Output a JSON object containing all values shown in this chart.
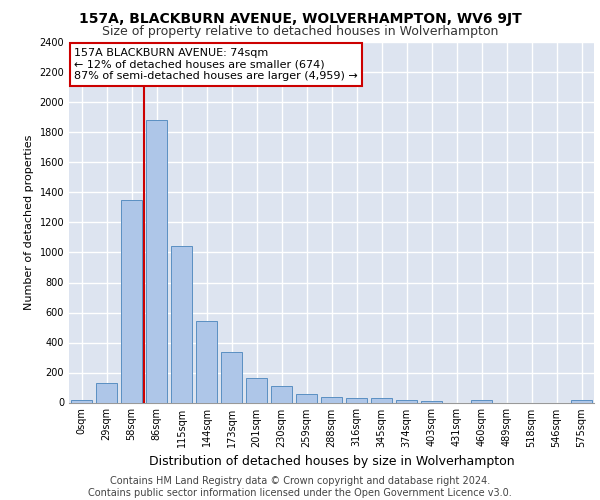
{
  "title": "157A, BLACKBURN AVENUE, WOLVERHAMPTON, WV6 9JT",
  "subtitle": "Size of property relative to detached houses in Wolverhampton",
  "xlabel": "Distribution of detached houses by size in Wolverhampton",
  "ylabel": "Number of detached properties",
  "categories": [
    "0sqm",
    "29sqm",
    "58sqm",
    "86sqm",
    "115sqm",
    "144sqm",
    "173sqm",
    "201sqm",
    "230sqm",
    "259sqm",
    "288sqm",
    "316sqm",
    "345sqm",
    "374sqm",
    "403sqm",
    "431sqm",
    "460sqm",
    "489sqm",
    "518sqm",
    "546sqm",
    "575sqm"
  ],
  "values": [
    15,
    130,
    1350,
    1880,
    1045,
    545,
    335,
    165,
    110,
    60,
    38,
    30,
    28,
    20,
    10,
    0,
    20,
    0,
    0,
    0,
    15
  ],
  "bar_color": "#aec6e8",
  "bar_edge_color": "#5a8fc2",
  "vline_x_index": 2.5,
  "vline_color": "#cc0000",
  "annotation_text": "157A BLACKBURN AVENUE: 74sqm\n← 12% of detached houses are smaller (674)\n87% of semi-detached houses are larger (4,959) →",
  "annotation_box_color": "#ffffff",
  "annotation_border_color": "#cc0000",
  "ylim": [
    0,
    2400
  ],
  "yticks": [
    0,
    200,
    400,
    600,
    800,
    1000,
    1200,
    1400,
    1600,
    1800,
    2000,
    2200,
    2400
  ],
  "bg_color": "#dde4f0",
  "grid_color": "#ffffff",
  "footer": "Contains HM Land Registry data © Crown copyright and database right 2024.\nContains public sector information licensed under the Open Government Licence v3.0.",
  "title_fontsize": 10,
  "subtitle_fontsize": 9,
  "footer_fontsize": 7,
  "ylabel_fontsize": 8,
  "xlabel_fontsize": 9,
  "tick_fontsize": 7,
  "annotation_fontsize": 8
}
